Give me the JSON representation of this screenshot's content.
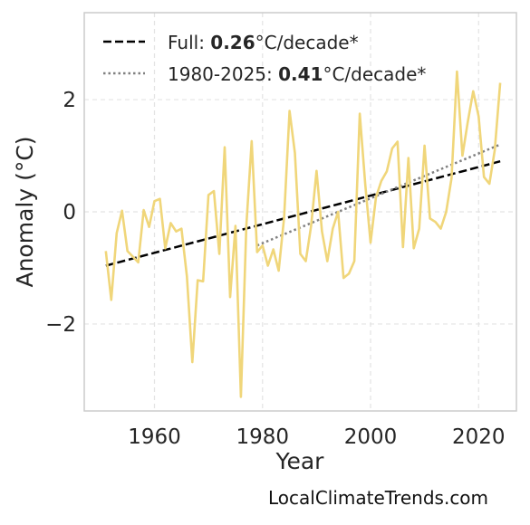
{
  "chart_data": {
    "type": "line",
    "xlabel": "Year",
    "ylabel": "Anomaly (°C)",
    "xlim": [
      1947,
      2027
    ],
    "ylim": [
      -3.55,
      3.55
    ],
    "x_ticks": [
      1960,
      1980,
      2000,
      2020
    ],
    "y_ticks": [
      -2,
      0,
      2
    ],
    "y_tick_labels": [
      "−2",
      "0",
      "2"
    ],
    "grid": true,
    "legend_position": "top-left",
    "colors": {
      "data": "#f0d67a",
      "full_trend": "#000000",
      "recent_trend": "#808080"
    },
    "x": [
      1951,
      1952,
      1953,
      1954,
      1955,
      1956,
      1957,
      1958,
      1959,
      1960,
      1961,
      1962,
      1963,
      1964,
      1965,
      1966,
      1967,
      1968,
      1969,
      1970,
      1971,
      1972,
      1973,
      1974,
      1975,
      1976,
      1977,
      1978,
      1979,
      1980,
      1981,
      1982,
      1983,
      1984,
      1985,
      1986,
      1987,
      1988,
      1989,
      1990,
      1991,
      1992,
      1993,
      1994,
      1995,
      1996,
      1997,
      1998,
      1999,
      2000,
      2001,
      2002,
      2003,
      2004,
      2005,
      2006,
      2007,
      2008,
      2009,
      2010,
      2011,
      2012,
      2013,
      2014,
      2015,
      2016,
      2017,
      2018,
      2019,
      2020,
      2021,
      2022,
      2023,
      2024
    ],
    "series": [
      {
        "values": [
          -0.7,
          -1.57,
          -0.38,
          0.02,
          -0.7,
          -0.8,
          -0.9,
          0.03,
          -0.27,
          0.19,
          0.23,
          -0.65,
          -0.2,
          -0.35,
          -0.3,
          -1.15,
          -2.68,
          -1.22,
          -1.24,
          0.3,
          0.37,
          -0.75,
          1.15,
          -1.52,
          -0.25,
          -3.3,
          -0.25,
          1.26,
          -0.72,
          -0.6,
          -0.96,
          -0.67,
          -1.05,
          -0.1,
          1.8,
          1.05,
          -0.75,
          -0.88,
          -0.25,
          0.73,
          -0.35,
          -0.88,
          -0.3,
          0.0,
          -1.18,
          -1.1,
          -0.88,
          1.75,
          0.5,
          -0.55,
          0.26,
          0.55,
          0.72,
          1.13,
          1.25,
          -0.63,
          0.96,
          -0.65,
          -0.3,
          1.18,
          -0.12,
          -0.18,
          -0.3,
          0.0,
          0.6,
          2.5,
          1.0,
          1.6,
          2.15,
          1.7,
          0.62,
          0.5,
          1.1,
          2.3
        ]
      }
    ],
    "trend_lines": [
      {
        "label_prefix": "Full: ",
        "label_value": "0.26",
        "label_suffix": "°C/decade*",
        "x": [
          1951,
          2024
        ],
        "y": [
          -0.96,
          0.9
        ]
      },
      {
        "label_prefix": "1980-2025: ",
        "label_value": "0.41",
        "label_suffix": "°C/decade*",
        "x": [
          1979,
          2024
        ],
        "y": [
          -0.6,
          1.2
        ]
      }
    ]
  },
  "footer": {
    "credit": "LocalClimateTrends.com"
  }
}
